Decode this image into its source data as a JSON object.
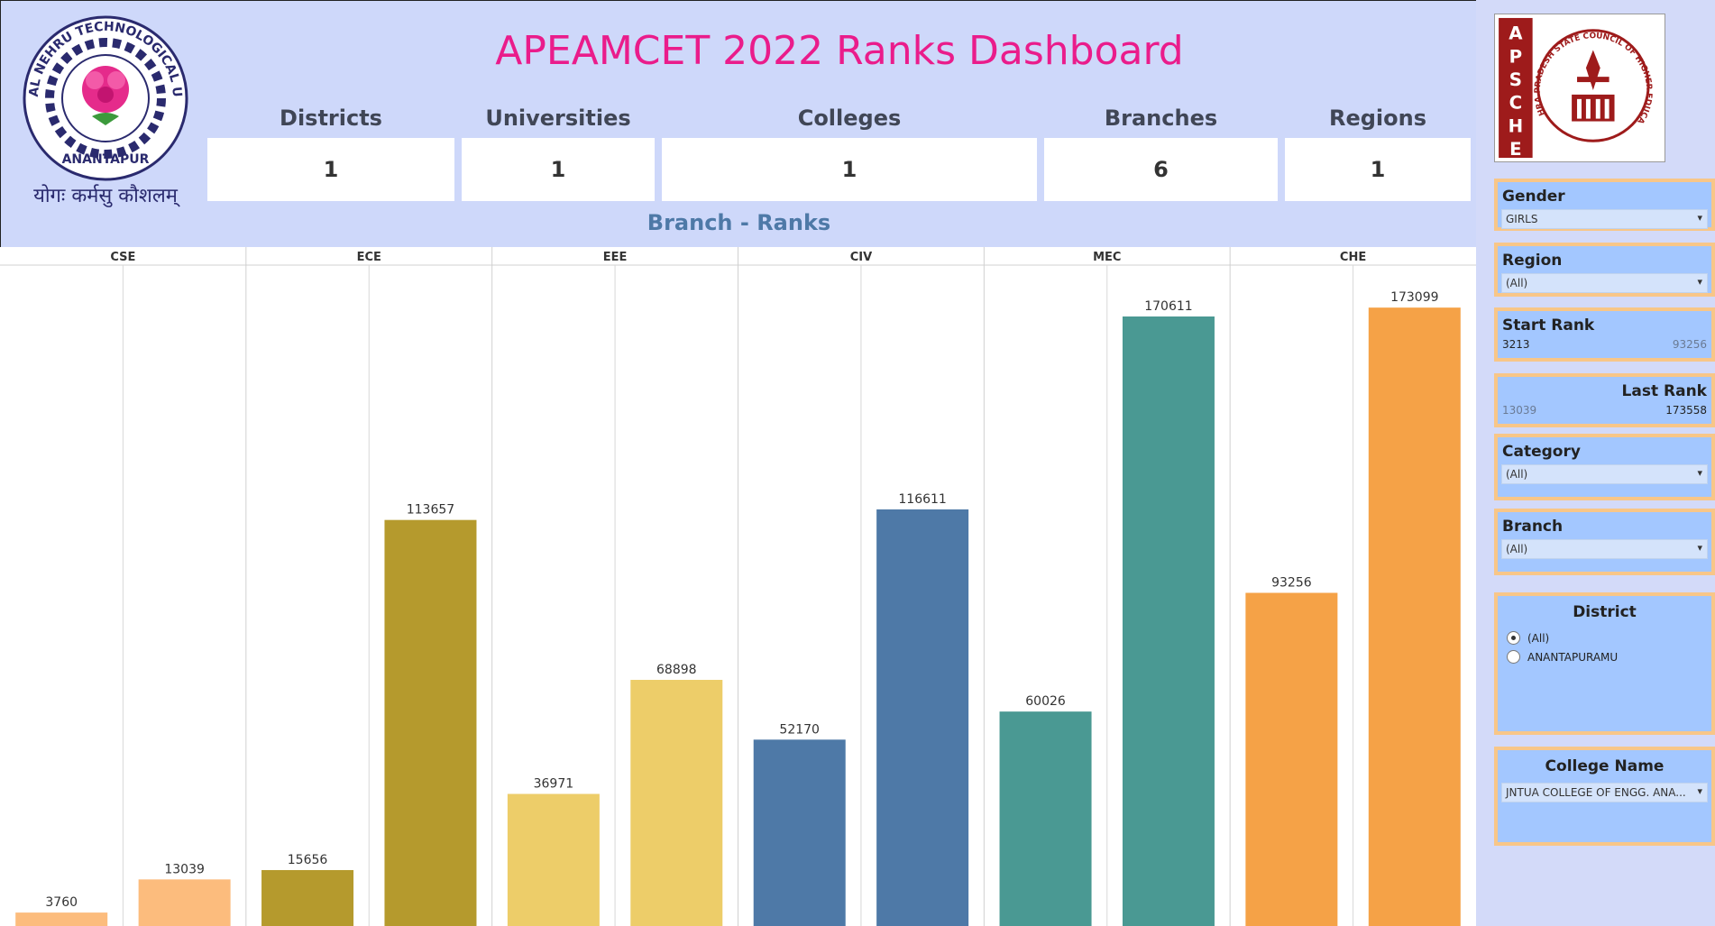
{
  "dashboard": {
    "title": "APEAMCET 2022 Ranks Dashboard",
    "subtitle": "Branch - Ranks"
  },
  "left_logo": {
    "icon": "jntua-logo-icon",
    "arc_text": "JAWAHARLAL NEHRU TECHNOLOGICAL UNIVERSITY",
    "bottom_text": "ANANTAPUR",
    "motto": "योगः कर्मसु कौशलम्"
  },
  "right_logo": {
    "icon": "apsche-logo-icon",
    "vertical_text": "APSCHE",
    "arc_text": "ANDHRA PRADESH STATE COUNCIL OF HIGHER EDUCATION"
  },
  "kpis": [
    {
      "label": "Districts",
      "value": "1"
    },
    {
      "label": "Universities",
      "value": "1"
    },
    {
      "label": "Colleges",
      "value": "1"
    },
    {
      "label": "Branches",
      "value": "6"
    },
    {
      "label": "Regions",
      "value": "1"
    }
  ],
  "filters": {
    "gender": {
      "title": "Gender",
      "value": "GIRLS"
    },
    "region": {
      "title": "Region",
      "value": "(All)"
    },
    "start_rank": {
      "title": "Start Rank",
      "low": "3213",
      "high": "93256"
    },
    "last_rank": {
      "title": "Last Rank",
      "low": "13039",
      "high": "173558"
    },
    "category": {
      "title": "Category",
      "value": "(All)"
    },
    "branch": {
      "title": "Branch",
      "value": "(All)"
    },
    "district": {
      "title": "District",
      "options": [
        "(All)",
        "ANANTAPURAMU"
      ],
      "selected": "(All)"
    },
    "college": {
      "title": "College Name",
      "value": "JNTUA COLLEGE OF ENGG. ANA..."
    }
  },
  "chart_data": {
    "type": "bar",
    "title": "Branch - Ranks",
    "categories": [
      "CSE",
      "ECE",
      "EEE",
      "CIV",
      "MEC",
      "CHE"
    ],
    "series": [
      {
        "values": [
          3760,
          15656,
          36971,
          52170,
          60026,
          93256
        ]
      },
      {
        "values": [
          13039,
          113657,
          68898,
          116611,
          170611,
          173099
        ]
      }
    ],
    "colors": {
      "CSE": [
        "#fcbc7d",
        "#fcbc7d"
      ],
      "ECE": [
        "#b59a2d",
        "#b59a2d"
      ],
      "EEE": [
        "#edcd69",
        "#edcd69"
      ],
      "CIV": [
        "#4e79a7",
        "#4e79a7"
      ],
      "MEC": [
        "#4a9993",
        "#4a9993"
      ],
      "CHE": [
        "#f5a247",
        "#f5a247"
      ]
    },
    "ylim": [
      0,
      185000
    ],
    "grid": true
  }
}
